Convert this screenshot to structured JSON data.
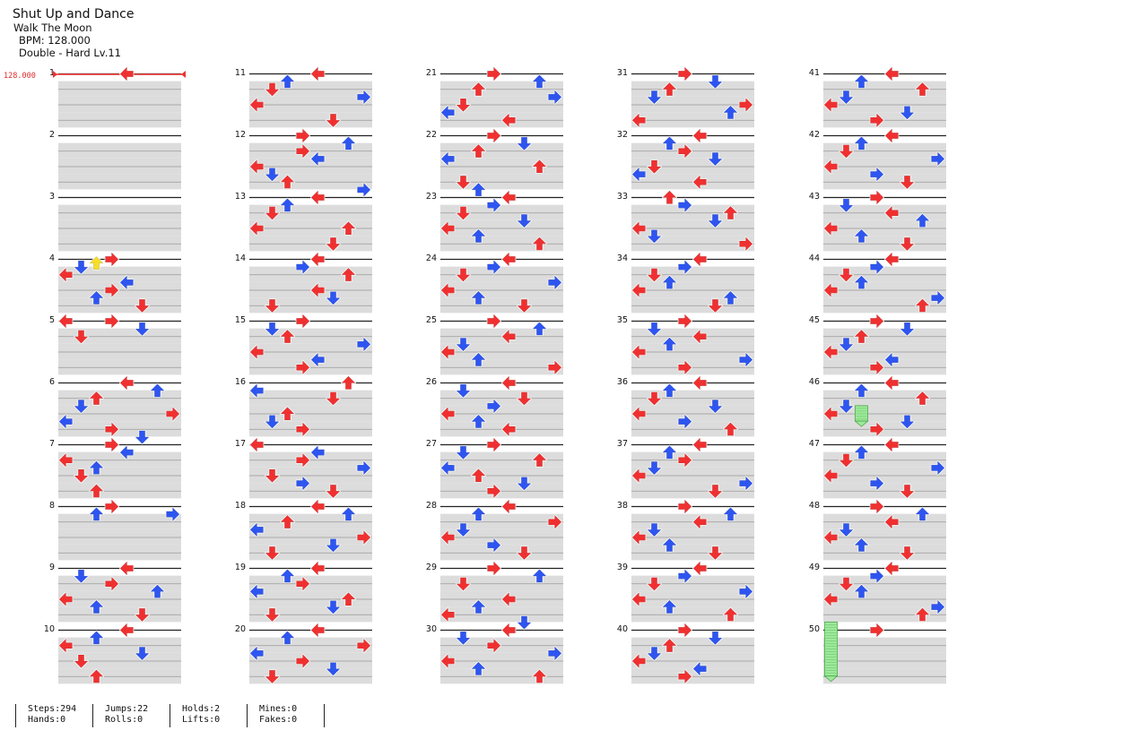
{
  "song": {
    "title": "Shut Up and Dance",
    "artist": "Walk The Moon",
    "bpm_line": "BPM: 128.000",
    "difficulty_line": "Double - Hard Lv.11"
  },
  "bpm_marker": "128.000",
  "measure_count": 50,
  "notes": [
    {
      "m": 1,
      "b": 0,
      "c": 4
    },
    {
      "m": 4,
      "b": 0,
      "c": 3
    },
    {
      "m": 4,
      "b": 0.25,
      "c": 2
    },
    {
      "m": 4,
      "b": 0.5,
      "c": 1
    },
    {
      "m": 4,
      "b": 1,
      "c": 0
    },
    {
      "m": 4,
      "b": 1.5,
      "c": 4
    },
    {
      "m": 4,
      "b": 2,
      "c": 3
    },
    {
      "m": 4,
      "b": 2.5,
      "c": 2
    },
    {
      "m": 4,
      "b": 3,
      "c": 5
    },
    {
      "m": 5,
      "b": 0,
      "c": 3
    },
    {
      "m": 5,
      "b": 0,
      "c": 0
    },
    {
      "m": 5,
      "b": 0.5,
      "c": 5
    },
    {
      "m": 5,
      "b": 1,
      "c": 1
    },
    {
      "m": 6,
      "b": 0,
      "c": 4
    },
    {
      "m": 6,
      "b": 0.5,
      "c": 6
    },
    {
      "m": 6,
      "b": 1,
      "c": 2
    },
    {
      "m": 6,
      "b": 1.5,
      "c": 1
    },
    {
      "m": 6,
      "b": 2,
      "c": 7
    },
    {
      "m": 6,
      "b": 2.5,
      "c": 0
    },
    {
      "m": 6,
      "b": 3,
      "c": 3
    },
    {
      "m": 6,
      "b": 3.5,
      "c": 5
    },
    {
      "m": 7,
      "b": 0,
      "c": 3
    },
    {
      "m": 7,
      "b": 0.5,
      "c": 4
    },
    {
      "m": 7,
      "b": 1,
      "c": 0
    },
    {
      "m": 7,
      "b": 1.5,
      "c": 2
    },
    {
      "m": 7,
      "b": 2,
      "c": 1
    },
    {
      "m": 7,
      "b": 3,
      "c": 2
    },
    {
      "m": 8,
      "b": 0,
      "c": 3
    },
    {
      "m": 8,
      "b": 0.5,
      "c": 2
    },
    {
      "m": 8,
      "b": 0.5,
      "c": 7
    },
    {
      "m": 9,
      "b": 0,
      "c": 4
    },
    {
      "m": 9,
      "b": 0.5,
      "c": 1
    },
    {
      "m": 9,
      "b": 1,
      "c": 3
    },
    {
      "m": 9,
      "b": 1.5,
      "c": 6
    },
    {
      "m": 9,
      "b": 2,
      "c": 0
    },
    {
      "m": 9,
      "b": 2.5,
      "c": 2
    },
    {
      "m": 9,
      "b": 3,
      "c": 5
    },
    {
      "m": 10,
      "b": 0,
      "c": 4
    },
    {
      "m": 10,
      "b": 0.5,
      "c": 2
    },
    {
      "m": 10,
      "b": 1,
      "c": 0
    },
    {
      "m": 10,
      "b": 1.5,
      "c": 5
    },
    {
      "m": 10,
      "b": 2,
      "c": 1
    },
    {
      "m": 10,
      "b": 3,
      "c": 2
    },
    {
      "m": 11,
      "b": 0,
      "c": 4
    },
    {
      "m": 11,
      "b": 0.5,
      "c": 2
    },
    {
      "m": 11,
      "b": 1,
      "c": 1
    },
    {
      "m": 11,
      "b": 1.5,
      "c": 7
    },
    {
      "m": 11,
      "b": 2,
      "c": 0
    },
    {
      "m": 11,
      "b": 3,
      "c": 5
    },
    {
      "m": 12,
      "b": 0,
      "c": 3
    },
    {
      "m": 12,
      "b": 0.5,
      "c": 6
    },
    {
      "m": 12,
      "b": 1,
      "c": 3
    },
    {
      "m": 12,
      "b": 1.5,
      "c": 4
    },
    {
      "m": 12,
      "b": 2,
      "c": 0
    },
    {
      "m": 12,
      "b": 2.5,
      "c": 1
    },
    {
      "m": 12,
      "b": 3,
      "c": 2
    },
    {
      "m": 12,
      "b": 3.5,
      "c": 7
    },
    {
      "m": 13,
      "b": 0,
      "c": 4
    },
    {
      "m": 13,
      "b": 0.5,
      "c": 2
    },
    {
      "m": 13,
      "b": 1,
      "c": 1
    },
    {
      "m": 13,
      "b": 2,
      "c": 6
    },
    {
      "m": 13,
      "b": 2,
      "c": 0
    },
    {
      "m": 13,
      "b": 3,
      "c": 5
    },
    {
      "m": 14,
      "b": 0,
      "c": 4
    },
    {
      "m": 14,
      "b": 0.5,
      "c": 3
    },
    {
      "m": 14,
      "b": 1,
      "c": 6
    },
    {
      "m": 14,
      "b": 2,
      "c": 4
    },
    {
      "m": 14,
      "b": 2.5,
      "c": 5
    },
    {
      "m": 14,
      "b": 3,
      "c": 1
    },
    {
      "m": 15,
      "b": 0,
      "c": 3
    },
    {
      "m": 15,
      "b": 0.5,
      "c": 1
    },
    {
      "m": 15,
      "b": 1,
      "c": 2
    },
    {
      "m": 15,
      "b": 1.5,
      "c": 7
    },
    {
      "m": 15,
      "b": 2,
      "c": 0
    },
    {
      "m": 15,
      "b": 2.5,
      "c": 4
    },
    {
      "m": 15,
      "b": 3,
      "c": 3
    },
    {
      "m": 16,
      "b": 0,
      "c": 6
    },
    {
      "m": 16,
      "b": 0.5,
      "c": 0
    },
    {
      "m": 16,
      "b": 1,
      "c": 5
    },
    {
      "m": 16,
      "b": 2,
      "c": 2
    },
    {
      "m": 16,
      "b": 2.5,
      "c": 1
    },
    {
      "m": 16,
      "b": 3,
      "c": 3
    },
    {
      "m": 17,
      "b": 0,
      "c": 0
    },
    {
      "m": 17,
      "b": 0.5,
      "c": 4
    },
    {
      "m": 17,
      "b": 1,
      "c": 3
    },
    {
      "m": 17,
      "b": 1.5,
      "c": 7
    },
    {
      "m": 17,
      "b": 2,
      "c": 1
    },
    {
      "m": 17,
      "b": 2.5,
      "c": 3
    },
    {
      "m": 17,
      "b": 3,
      "c": 5
    },
    {
      "m": 18,
      "b": 0,
      "c": 4
    },
    {
      "m": 18,
      "b": 0.5,
      "c": 6
    },
    {
      "m": 18,
      "b": 1,
      "c": 2
    },
    {
      "m": 18,
      "b": 1.5,
      "c": 0
    },
    {
      "m": 18,
      "b": 2,
      "c": 7
    },
    {
      "m": 18,
      "b": 2.5,
      "c": 5
    },
    {
      "m": 18,
      "b": 3,
      "c": 1
    },
    {
      "m": 19,
      "b": 0,
      "c": 4
    },
    {
      "m": 19,
      "b": 0.5,
      "c": 2
    },
    {
      "m": 19,
      "b": 1,
      "c": 3
    },
    {
      "m": 19,
      "b": 1.5,
      "c": 0
    },
    {
      "m": 19,
      "b": 2,
      "c": 6
    },
    {
      "m": 19,
      "b": 2.5,
      "c": 5
    },
    {
      "m": 19,
      "b": 3,
      "c": 1
    },
    {
      "m": 20,
      "b": 0,
      "c": 4
    },
    {
      "m": 20,
      "b": 0.5,
      "c": 2
    },
    {
      "m": 20,
      "b": 1,
      "c": 7
    },
    {
      "m": 20,
      "b": 1.5,
      "c": 0
    },
    {
      "m": 20,
      "b": 2,
      "c": 3
    },
    {
      "m": 20,
      "b": 2.5,
      "c": 5
    },
    {
      "m": 20,
      "b": 3,
      "c": 1
    },
    {
      "m": 21,
      "b": 0,
      "c": 3
    },
    {
      "m": 21,
      "b": 0.5,
      "c": 6
    },
    {
      "m": 21,
      "b": 1,
      "c": 2
    },
    {
      "m": 21,
      "b": 1.5,
      "c": 7
    },
    {
      "m": 21,
      "b": 2,
      "c": 1
    },
    {
      "m": 21,
      "b": 2.5,
      "c": 0
    },
    {
      "m": 21,
      "b": 3,
      "c": 4
    },
    {
      "m": 22,
      "b": 0,
      "c": 3
    },
    {
      "m": 22,
      "b": 0.5,
      "c": 5
    },
    {
      "m": 22,
      "b": 1,
      "c": 2
    },
    {
      "m": 22,
      "b": 1.5,
      "c": 0
    },
    {
      "m": 22,
      "b": 2,
      "c": 6
    },
    {
      "m": 22,
      "b": 3,
      "c": 1
    },
    {
      "m": 22,
      "b": 3.5,
      "c": 2
    },
    {
      "m": 23,
      "b": 0,
      "c": 4
    },
    {
      "m": 23,
      "b": 0.5,
      "c": 3
    },
    {
      "m": 23,
      "b": 1,
      "c": 1
    },
    {
      "m": 23,
      "b": 1.5,
      "c": 5
    },
    {
      "m": 23,
      "b": 2,
      "c": 0
    },
    {
      "m": 23,
      "b": 2.5,
      "c": 2
    },
    {
      "m": 23,
      "b": 3,
      "c": 6
    },
    {
      "m": 24,
      "b": 0,
      "c": 4
    },
    {
      "m": 24,
      "b": 0.5,
      "c": 3
    },
    {
      "m": 24,
      "b": 1,
      "c": 1
    },
    {
      "m": 24,
      "b": 1.5,
      "c": 7
    },
    {
      "m": 24,
      "b": 2,
      "c": 0
    },
    {
      "m": 24,
      "b": 2.5,
      "c": 2
    },
    {
      "m": 24,
      "b": 3,
      "c": 5
    },
    {
      "m": 25,
      "b": 0,
      "c": 3
    },
    {
      "m": 25,
      "b": 0.5,
      "c": 6
    },
    {
      "m": 25,
      "b": 1,
      "c": 4
    },
    {
      "m": 25,
      "b": 1.5,
      "c": 1
    },
    {
      "m": 25,
      "b": 2,
      "c": 0
    },
    {
      "m": 25,
      "b": 2.5,
      "c": 2
    },
    {
      "m": 25,
      "b": 3,
      "c": 7
    },
    {
      "m": 26,
      "b": 0,
      "c": 4
    },
    {
      "m": 26,
      "b": 0.5,
      "c": 1
    },
    {
      "m": 26,
      "b": 1,
      "c": 5
    },
    {
      "m": 26,
      "b": 1.5,
      "c": 3
    },
    {
      "m": 26,
      "b": 2,
      "c": 0
    },
    {
      "m": 26,
      "b": 2.5,
      "c": 2
    },
    {
      "m": 26,
      "b": 3,
      "c": 4
    },
    {
      "m": 27,
      "b": 0,
      "c": 3
    },
    {
      "m": 27,
      "b": 0.5,
      "c": 1
    },
    {
      "m": 27,
      "b": 1,
      "c": 6
    },
    {
      "m": 27,
      "b": 1.5,
      "c": 0
    },
    {
      "m": 27,
      "b": 2,
      "c": 2
    },
    {
      "m": 27,
      "b": 2.5,
      "c": 5
    },
    {
      "m": 27,
      "b": 3,
      "c": 3
    },
    {
      "m": 28,
      "b": 0,
      "c": 4
    },
    {
      "m": 28,
      "b": 0.5,
      "c": 2
    },
    {
      "m": 28,
      "b": 1,
      "c": 7
    },
    {
      "m": 28,
      "b": 1.5,
      "c": 1
    },
    {
      "m": 28,
      "b": 2,
      "c": 0
    },
    {
      "m": 28,
      "b": 2.5,
      "c": 3
    },
    {
      "m": 28,
      "b": 3,
      "c": 5
    },
    {
      "m": 29,
      "b": 0,
      "c": 3
    },
    {
      "m": 29,
      "b": 0.5,
      "c": 6
    },
    {
      "m": 29,
      "b": 1,
      "c": 1
    },
    {
      "m": 29,
      "b": 2,
      "c": 4
    },
    {
      "m": 29,
      "b": 2.5,
      "c": 2
    },
    {
      "m": 29,
      "b": 3,
      "c": 0
    },
    {
      "m": 29,
      "b": 3.5,
      "c": 5
    },
    {
      "m": 30,
      "b": 0,
      "c": 4
    },
    {
      "m": 30,
      "b": 0.5,
      "c": 1
    },
    {
      "m": 30,
      "b": 1,
      "c": 3
    },
    {
      "m": 30,
      "b": 1.5,
      "c": 7
    },
    {
      "m": 30,
      "b": 2,
      "c": 0
    },
    {
      "m": 30,
      "b": 2.5,
      "c": 2
    },
    {
      "m": 30,
      "b": 3,
      "c": 6
    },
    {
      "m": 31,
      "b": 0,
      "c": 3
    },
    {
      "m": 31,
      "b": 0.5,
      "c": 5
    },
    {
      "m": 31,
      "b": 1,
      "c": 2
    },
    {
      "m": 31,
      "b": 1.5,
      "c": 1
    },
    {
      "m": 31,
      "b": 2,
      "c": 7
    },
    {
      "m": 31,
      "b": 2.5,
      "c": 6
    },
    {
      "m": 31,
      "b": 3,
      "c": 0
    },
    {
      "m": 32,
      "b": 0,
      "c": 4
    },
    {
      "m": 32,
      "b": 0.5,
      "c": 2
    },
    {
      "m": 32,
      "b": 1,
      "c": 3
    },
    {
      "m": 32,
      "b": 1.5,
      "c": 5
    },
    {
      "m": 32,
      "b": 2,
      "c": 1
    },
    {
      "m": 32,
      "b": 2.5,
      "c": 0
    },
    {
      "m": 32,
      "b": 3,
      "c": 4
    },
    {
      "m": 33,
      "b": 0,
      "c": 2
    },
    {
      "m": 33,
      "b": 0.5,
      "c": 3
    },
    {
      "m": 33,
      "b": 1,
      "c": 6
    },
    {
      "m": 33,
      "b": 1.5,
      "c": 5
    },
    {
      "m": 33,
      "b": 2,
      "c": 0
    },
    {
      "m": 33,
      "b": 2.5,
      "c": 1
    },
    {
      "m": 33,
      "b": 3,
      "c": 7
    },
    {
      "m": 34,
      "b": 0,
      "c": 4
    },
    {
      "m": 34,
      "b": 0.5,
      "c": 3
    },
    {
      "m": 34,
      "b": 1,
      "c": 1
    },
    {
      "m": 34,
      "b": 1.5,
      "c": 2
    },
    {
      "m": 34,
      "b": 2,
      "c": 0
    },
    {
      "m": 34,
      "b": 2.5,
      "c": 6
    },
    {
      "m": 34,
      "b": 3,
      "c": 5
    },
    {
      "m": 35,
      "b": 0,
      "c": 3
    },
    {
      "m": 35,
      "b": 0.5,
      "c": 1
    },
    {
      "m": 35,
      "b": 1,
      "c": 4
    },
    {
      "m": 35,
      "b": 1.5,
      "c": 2
    },
    {
      "m": 35,
      "b": 2,
      "c": 0
    },
    {
      "m": 35,
      "b": 2.5,
      "c": 7
    },
    {
      "m": 35,
      "b": 3,
      "c": 3
    },
    {
      "m": 36,
      "b": 0,
      "c": 4
    },
    {
      "m": 36,
      "b": 0.5,
      "c": 2
    },
    {
      "m": 36,
      "b": 1,
      "c": 1
    },
    {
      "m": 36,
      "b": 1.5,
      "c": 5
    },
    {
      "m": 36,
      "b": 2,
      "c": 0
    },
    {
      "m": 36,
      "b": 2.5,
      "c": 3
    },
    {
      "m": 36,
      "b": 3,
      "c": 6
    },
    {
      "m": 37,
      "b": 0,
      "c": 4
    },
    {
      "m": 37,
      "b": 0.5,
      "c": 2
    },
    {
      "m": 37,
      "b": 1,
      "c": 3
    },
    {
      "m": 37,
      "b": 1.5,
      "c": 1
    },
    {
      "m": 37,
      "b": 2,
      "c": 0
    },
    {
      "m": 37,
      "b": 2.5,
      "c": 7
    },
    {
      "m": 37,
      "b": 3,
      "c": 5
    },
    {
      "m": 38,
      "b": 0,
      "c": 3
    },
    {
      "m": 38,
      "b": 0.5,
      "c": 6
    },
    {
      "m": 38,
      "b": 1,
      "c": 4
    },
    {
      "m": 38,
      "b": 1.5,
      "c": 1
    },
    {
      "m": 38,
      "b": 2,
      "c": 0
    },
    {
      "m": 38,
      "b": 2.5,
      "c": 2
    },
    {
      "m": 38,
      "b": 3,
      "c": 5
    },
    {
      "m": 39,
      "b": 0,
      "c": 4
    },
    {
      "m": 39,
      "b": 0.5,
      "c": 3
    },
    {
      "m": 39,
      "b": 1,
      "c": 1
    },
    {
      "m": 39,
      "b": 1.5,
      "c": 7
    },
    {
      "m": 39,
      "b": 2,
      "c": 0
    },
    {
      "m": 39,
      "b": 2.5,
      "c": 2
    },
    {
      "m": 39,
      "b": 3,
      "c": 6
    },
    {
      "m": 40,
      "b": 0,
      "c": 3
    },
    {
      "m": 40,
      "b": 0.5,
      "c": 5
    },
    {
      "m": 40,
      "b": 1,
      "c": 2
    },
    {
      "m": 40,
      "b": 1.5,
      "c": 1
    },
    {
      "m": 40,
      "b": 2,
      "c": 0
    },
    {
      "m": 40,
      "b": 2.5,
      "c": 4
    },
    {
      "m": 40,
      "b": 3,
      "c": 3
    },
    {
      "m": 41,
      "b": 0,
      "c": 4
    },
    {
      "m": 41,
      "b": 0.5,
      "c": 2
    },
    {
      "m": 41,
      "b": 1,
      "c": 6
    },
    {
      "m": 41,
      "b": 1.5,
      "c": 1
    },
    {
      "m": 41,
      "b": 2,
      "c": 0
    },
    {
      "m": 41,
      "b": 2.5,
      "c": 5
    },
    {
      "m": 41,
      "b": 3,
      "c": 3
    },
    {
      "m": 42,
      "b": 0,
      "c": 4
    },
    {
      "m": 42,
      "b": 0.5,
      "c": 2
    },
    {
      "m": 42,
      "b": 1,
      "c": 1
    },
    {
      "m": 42,
      "b": 1.5,
      "c": 7
    },
    {
      "m": 42,
      "b": 2,
      "c": 0
    },
    {
      "m": 42,
      "b": 2.5,
      "c": 3
    },
    {
      "m": 42,
      "b": 3,
      "c": 5
    },
    {
      "m": 43,
      "b": 0,
      "c": 3
    },
    {
      "m": 43,
      "b": 0.5,
      "c": 1
    },
    {
      "m": 43,
      "b": 1,
      "c": 4
    },
    {
      "m": 43,
      "b": 1.5,
      "c": 6
    },
    {
      "m": 43,
      "b": 2,
      "c": 0
    },
    {
      "m": 43,
      "b": 2.5,
      "c": 2
    },
    {
      "m": 43,
      "b": 3,
      "c": 5
    },
    {
      "m": 44,
      "b": 0,
      "c": 4
    },
    {
      "m": 44,
      "b": 0.5,
      "c": 3
    },
    {
      "m": 44,
      "b": 1,
      "c": 1
    },
    {
      "m": 44,
      "b": 1.5,
      "c": 2
    },
    {
      "m": 44,
      "b": 2,
      "c": 0
    },
    {
      "m": 44,
      "b": 2.5,
      "c": 7
    },
    {
      "m": 44,
      "b": 3,
      "c": 6
    },
    {
      "m": 45,
      "b": 0,
      "c": 3
    },
    {
      "m": 45,
      "b": 0.5,
      "c": 5
    },
    {
      "m": 45,
      "b": 1,
      "c": 2
    },
    {
      "m": 45,
      "b": 1.5,
      "c": 1
    },
    {
      "m": 45,
      "b": 2,
      "c": 0
    },
    {
      "m": 45,
      "b": 2.5,
      "c": 4
    },
    {
      "m": 45,
      "b": 3,
      "c": 3
    },
    {
      "m": 46,
      "b": 0,
      "c": 4
    },
    {
      "m": 46,
      "b": 0.5,
      "c": 2
    },
    {
      "m": 46,
      "b": 1,
      "c": 6
    },
    {
      "m": 46,
      "b": 1.5,
      "c": 1
    },
    {
      "m": 46,
      "b": 2,
      "c": 0
    },
    {
      "m": 46,
      "b": 2.5,
      "c": 5
    },
    {
      "m": 46,
      "b": 3,
      "c": 3
    },
    {
      "m": 47,
      "b": 0,
      "c": 4
    },
    {
      "m": 47,
      "b": 0.5,
      "c": 2
    },
    {
      "m": 47,
      "b": 1,
      "c": 1
    },
    {
      "m": 47,
      "b": 1.5,
      "c": 7
    },
    {
      "m": 47,
      "b": 2,
      "c": 0
    },
    {
      "m": 47,
      "b": 2.5,
      "c": 3
    },
    {
      "m": 47,
      "b": 3,
      "c": 5
    },
    {
      "m": 48,
      "b": 0,
      "c": 3
    },
    {
      "m": 48,
      "b": 0.5,
      "c": 6
    },
    {
      "m": 48,
      "b": 1,
      "c": 4
    },
    {
      "m": 48,
      "b": 1.5,
      "c": 1
    },
    {
      "m": 48,
      "b": 2,
      "c": 0
    },
    {
      "m": 48,
      "b": 2.5,
      "c": 2
    },
    {
      "m": 48,
      "b": 3,
      "c": 5
    },
    {
      "m": 49,
      "b": 0,
      "c": 4
    },
    {
      "m": 49,
      "b": 0.5,
      "c": 3
    },
    {
      "m": 49,
      "b": 1,
      "c": 1
    },
    {
      "m": 49,
      "b": 1.5,
      "c": 2
    },
    {
      "m": 49,
      "b": 2,
      "c": 0
    },
    {
      "m": 49,
      "b": 2.5,
      "c": 7
    },
    {
      "m": 49,
      "b": 3,
      "c": 6
    },
    {
      "m": 50,
      "b": 0,
      "c": 3
    }
  ],
  "holds": [
    {
      "m": 46,
      "b": 1.5,
      "c": 2,
      "len": 1.0
    },
    {
      "m": 49,
      "b": 3.5,
      "c": 0,
      "len": 3.5
    }
  ],
  "stats": [
    {
      "a": "Steps:294",
      "b": "Hands:0"
    },
    {
      "a": "Jumps:22",
      "b": "Rolls:0"
    },
    {
      "a": "Holds:2",
      "b": "Lifts:0"
    },
    {
      "a": "Mines:0",
      "b": "Fakes:0"
    }
  ],
  "colors": {
    "blue": "#2e55f0",
    "red": "#f03030",
    "yellow": "#f5dd2a",
    "band": "#dcdcdc",
    "hold": "#9fe89c"
  }
}
